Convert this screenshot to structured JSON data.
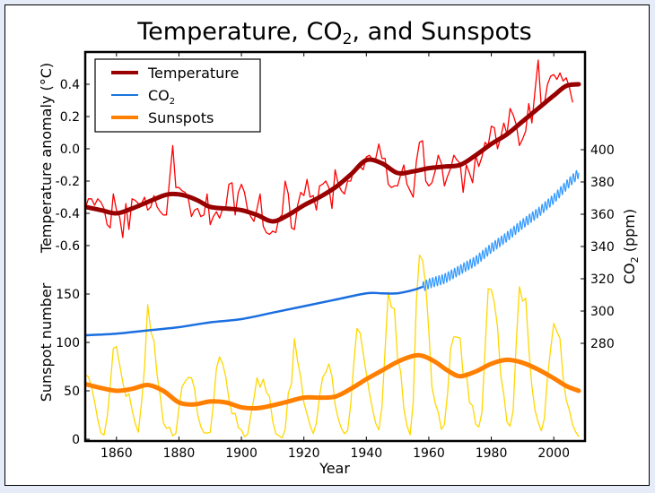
{
  "chart_data": {
    "type": "line",
    "title": "Temperature, CO₂, and Sunspots",
    "title_parts": {
      "pre": "Temperature, CO",
      "sub": "2",
      "post": ", and Sunspots"
    },
    "xlabel": "Year",
    "xlim": [
      1850,
      2010
    ],
    "xticks": [
      1860,
      1880,
      1900,
      1920,
      1940,
      1960,
      1980,
      2000
    ],
    "grid": false,
    "legend": {
      "placement": "top-left",
      "entries": [
        {
          "label": "Temperature",
          "color": "#990000"
        },
        {
          "label": "CO",
          "sub": "2",
          "color": "#1a75dd"
        },
        {
          "label": "Sunspots",
          "color": "#ff7f00"
        }
      ]
    },
    "axes": {
      "temperature": {
        "label": "Temperature anomaly (°C)",
        "side": "left-upper",
        "ylim": [
          -0.8,
          0.6
        ],
        "ticks": [
          0.4,
          0.2,
          0.0,
          -0.2,
          -0.4,
          -0.6
        ],
        "tick_labels": [
          "0.4",
          "0.2",
          "0.0",
          "-0.2",
          "-0.4",
          "-0.6"
        ]
      },
      "sunspot": {
        "label": "Sunspot number",
        "side": "left-lower",
        "ylim": [
          0,
          160
        ],
        "ticks": [
          150,
          100,
          50,
          0
        ],
        "tick_labels": [
          "150",
          "100",
          "50",
          "0"
        ]
      },
      "co2": {
        "label_pre": "CO",
        "label_sub": "2",
        "label_post": " (ppm)",
        "side": "right",
        "ylim": [
          265,
          410
        ],
        "ticks": [
          400,
          380,
          360,
          340,
          320,
          300,
          280
        ],
        "tick_labels": [
          "400",
          "380",
          "360",
          "340",
          "320",
          "300",
          "280"
        ]
      }
    },
    "series": [
      {
        "name": "Temperature (annual)",
        "axis": "temperature",
        "color": "#ff0000",
        "width": 1.3,
        "x_start": 1850,
        "values": [
          -0.37,
          -0.31,
          -0.31,
          -0.35,
          -0.31,
          -0.33,
          -0.37,
          -0.47,
          -0.49,
          -0.28,
          -0.38,
          -0.42,
          -0.55,
          -0.34,
          -0.5,
          -0.31,
          -0.32,
          -0.34,
          -0.34,
          -0.3,
          -0.38,
          -0.36,
          -0.29,
          -0.36,
          -0.39,
          -0.41,
          -0.41,
          -0.19,
          0.02,
          -0.24,
          -0.24,
          -0.26,
          -0.27,
          -0.31,
          -0.42,
          -0.38,
          -0.37,
          -0.42,
          -0.41,
          -0.28,
          -0.47,
          -0.42,
          -0.39,
          -0.43,
          -0.37,
          -0.36,
          -0.22,
          -0.21,
          -0.41,
          -0.27,
          -0.22,
          -0.27,
          -0.38,
          -0.42,
          -0.45,
          -0.37,
          -0.28,
          -0.48,
          -0.52,
          -0.53,
          -0.51,
          -0.52,
          -0.43,
          -0.41,
          -0.2,
          -0.28,
          -0.49,
          -0.5,
          -0.35,
          -0.27,
          -0.29,
          -0.19,
          -0.3,
          -0.29,
          -0.38,
          -0.23,
          -0.22,
          -0.2,
          -0.24,
          -0.37,
          -0.13,
          -0.22,
          -0.26,
          -0.28,
          -0.2,
          -0.2,
          -0.13,
          -0.12,
          -0.11,
          -0.13,
          -0.05,
          -0.04,
          -0.07,
          -0.06,
          0.03,
          -0.06,
          -0.06,
          -0.22,
          -0.24,
          -0.23,
          -0.23,
          -0.16,
          -0.1,
          -0.22,
          -0.26,
          -0.3,
          -0.08,
          0.04,
          0.05,
          -0.2,
          -0.23,
          -0.21,
          -0.14,
          -0.04,
          -0.09,
          -0.23,
          -0.17,
          -0.12,
          -0.04,
          -0.07,
          -0.09,
          -0.27,
          -0.1,
          -0.15,
          -0.21,
          -0.04,
          -0.11,
          -0.05,
          0.04,
          0.02,
          0.14,
          0.13,
          0.0,
          0.07,
          0.16,
          0.09,
          0.25,
          0.21,
          0.15,
          0.02,
          0.06,
          0.11,
          0.28,
          0.16,
          0.36,
          0.55,
          0.26,
          0.28,
          0.4,
          0.45,
          0.46,
          0.43,
          0.47,
          0.42,
          0.44,
          0.38,
          0.29
        ]
      },
      {
        "name": "Temperature",
        "axis": "temperature",
        "color": "#990000",
        "width": 5,
        "x": [
          1850,
          1855,
          1860,
          1865,
          1870,
          1875,
          1878,
          1882,
          1886,
          1890,
          1895,
          1900,
          1905,
          1910,
          1915,
          1920,
          1925,
          1930,
          1935,
          1940,
          1945,
          1950,
          1955,
          1960,
          1965,
          1970,
          1975,
          1980,
          1985,
          1990,
          1995,
          2000,
          2004,
          2008
        ],
        "values": [
          -0.36,
          -0.38,
          -0.4,
          -0.37,
          -0.33,
          -0.29,
          -0.28,
          -0.29,
          -0.32,
          -0.36,
          -0.37,
          -0.38,
          -0.41,
          -0.45,
          -0.41,
          -0.35,
          -0.3,
          -0.24,
          -0.16,
          -0.07,
          -0.09,
          -0.15,
          -0.14,
          -0.12,
          -0.11,
          -0.1,
          -0.04,
          0.03,
          0.09,
          0.17,
          0.25,
          0.33,
          0.39,
          0.4
        ]
      },
      {
        "name": "CO2 (ice core)",
        "axis": "co2",
        "color": "#1a6ee0",
        "width": 2.5,
        "x": [
          1850,
          1860,
          1870,
          1880,
          1890,
          1900,
          1910,
          1920,
          1930,
          1940,
          1945,
          1950,
          1955,
          1958
        ],
        "values": [
          285,
          286,
          288,
          290,
          293,
          295,
          299,
          303,
          307,
          311,
          311,
          311,
          313,
          315
        ]
      },
      {
        "name": "CO2 (monthly)",
        "axis": "co2",
        "color": "#3399ff",
        "width": 1.2,
        "x_start": 1958,
        "x_end": 2008,
        "trend": [
          [
            1958,
            315
          ],
          [
            1960,
            317
          ],
          [
            1965,
            320
          ],
          [
            1970,
            325.5
          ],
          [
            1975,
            331
          ],
          [
            1980,
            339
          ],
          [
            1985,
            346
          ],
          [
            1990,
            354
          ],
          [
            1995,
            361
          ],
          [
            2000,
            369.5
          ],
          [
            2005,
            379.8
          ],
          [
            2008,
            385.5
          ]
        ],
        "seasonal_amplitude": 3
      },
      {
        "name": "Sunspots (annual)",
        "axis": "sunspot",
        "color": "#ffd700",
        "width": 1.3,
        "x_start": 1850,
        "values": [
          66.6,
          64.5,
          54.1,
          39.0,
          20.6,
          6.7,
          4.3,
          22.7,
          54.8,
          93.8,
          95.8,
          77.2,
          59.1,
          44.0,
          47.0,
          30.5,
          16.3,
          7.3,
          37.6,
          74.0,
          139.0,
          111.2,
          101.6,
          66.2,
          44.7,
          17.0,
          11.3,
          12.4,
          3.4,
          6.0,
          32.3,
          54.3,
          59.7,
          63.7,
          63.5,
          52.2,
          25.4,
          13.1,
          6.8,
          6.3,
          7.1,
          35.6,
          73.0,
          85.1,
          78.0,
          64.0,
          41.8,
          26.2,
          26.7,
          12.1,
          9.5,
          2.7,
          5.0,
          24.4,
          42.0,
          63.5,
          53.8,
          62.0,
          48.5,
          43.9,
          18.6,
          5.7,
          3.6,
          1.4,
          9.6,
          47.4,
          57.1,
          103.9,
          80.6,
          63.6,
          37.6,
          26.1,
          14.2,
          5.8,
          16.7,
          44.3,
          63.9,
          69.0,
          77.8,
          64.9,
          35.7,
          21.2,
          11.1,
          5.7,
          8.7,
          36.1,
          79.7,
          114.4,
          109.6,
          88.8,
          67.8,
          47.5,
          30.6,
          16.3,
          9.6,
          33.2,
          92.6,
          151.6,
          136.3,
          134.7,
          83.9,
          69.4,
          31.5,
          13.9,
          4.4,
          38.0,
          141.7,
          190.2,
          184.8,
          159.0,
          112.3,
          53.9,
          37.6,
          27.9,
          10.2,
          15.1,
          47.0,
          93.8,
          105.9,
          105.5,
          104.5,
          66.6,
          68.9,
          38.0,
          34.5,
          15.5,
          12.6,
          27.5,
          92.5,
          155.4,
          154.6,
          140.4,
          115.9,
          66.6,
          45.9,
          17.9,
          13.4,
          29.4,
          100.2,
          157.6,
          142.6,
          145.7,
          94.3,
          54.6,
          29.9,
          17.5,
          8.6,
          21.5,
          64.3,
          93.3,
          119.6,
          111.0,
          104.0,
          63.7,
          40.4,
          29.8,
          15.2,
          7.5,
          2.9
        ]
      },
      {
        "name": "Sunspots",
        "axis": "sunspot",
        "color": "#ff7f00",
        "width": 5,
        "x": [
          1850,
          1855,
          1860,
          1865,
          1870,
          1875,
          1880,
          1885,
          1890,
          1895,
          1900,
          1905,
          1910,
          1915,
          1920,
          1925,
          1930,
          1935,
          1940,
          1945,
          1950,
          1955,
          1958,
          1962,
          1966,
          1970,
          1975,
          1980,
          1985,
          1990,
          1995,
          2000,
          2004,
          2008
        ],
        "values": [
          57,
          53,
          50,
          52,
          56,
          50,
          38,
          36,
          39,
          38,
          33,
          32,
          35,
          39,
          43,
          43,
          44,
          52,
          62,
          71,
          80,
          86,
          86,
          80,
          71,
          65,
          70,
          78,
          82,
          79,
          72,
          63,
          55,
          50
        ]
      }
    ]
  }
}
